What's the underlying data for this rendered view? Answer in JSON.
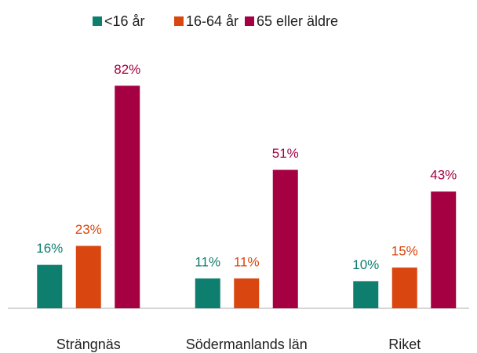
{
  "chart_data": {
    "type": "bar",
    "categories": [
      "Strängnäs",
      "Södermanlands län",
      "Riket"
    ],
    "series": [
      {
        "name": "<16 år",
        "color": "#0e7f6f",
        "values": [
          16,
          11,
          10
        ],
        "value_labels": [
          "16%",
          "11%",
          "10%"
        ]
      },
      {
        "name": "16-64 år",
        "color": "#d9460f",
        "values": [
          23,
          11,
          15
        ],
        "value_labels": [
          "23%",
          "11%",
          "15%"
        ]
      },
      {
        "name": "65 eller äldre",
        "color": "#a50041",
        "values": [
          82,
          51,
          43
        ],
        "value_labels": [
          "82%",
          "51%",
          "43%"
        ]
      }
    ],
    "legend": "top"
  }
}
